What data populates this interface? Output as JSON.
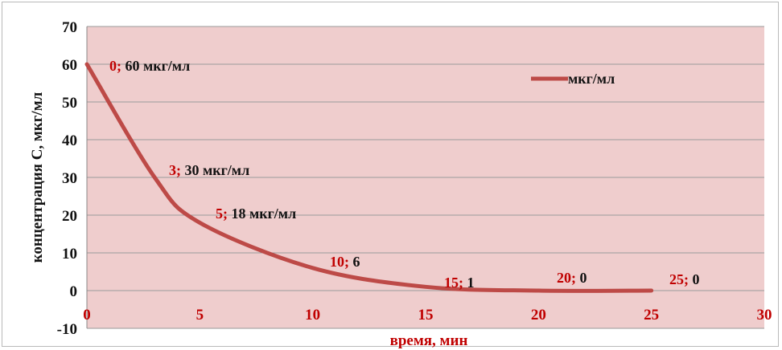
{
  "chart_data": {
    "type": "line",
    "xlabel": "время, мин",
    "ylabel": "концентрация С, мкг/мл",
    "xlim": [
      0,
      30
    ],
    "ylim": [
      -10,
      70
    ],
    "x_ticks": [
      0,
      5,
      10,
      15,
      20,
      25,
      30
    ],
    "y_ticks": [
      -10,
      0,
      10,
      20,
      30,
      40,
      50,
      60,
      70
    ],
    "grid": true,
    "legend": {
      "position": "top-right"
    },
    "series": [
      {
        "name": "мкг/мл",
        "x": [
          0,
          3,
          5,
          10,
          15,
          20,
          25
        ],
        "y": [
          60,
          30,
          18,
          6,
          1,
          0,
          0
        ],
        "labels": [
          {
            "x_text": "0;",
            "y_text": "60 мкг/мл"
          },
          {
            "x_text": "3;",
            "y_text": "30 мкг/мл"
          },
          {
            "x_text": "5;",
            "y_text": "18 мкг/мл"
          },
          {
            "x_text": "10;",
            "y_text": "6"
          },
          {
            "x_text": "15;",
            "y_text": "1"
          },
          {
            "x_text": "20;",
            "y_text": "0"
          },
          {
            "x_text": "25;",
            "y_text": "0"
          }
        ]
      }
    ]
  },
  "colors": {
    "plot_background": "#efcdcd",
    "line": "#bd4a47",
    "gridline": "#9a9a9a",
    "x_tick_text": "#c00000",
    "y_tick_text": "#111111",
    "label_x_text": "#c00000",
    "label_y_text": "#111111"
  }
}
